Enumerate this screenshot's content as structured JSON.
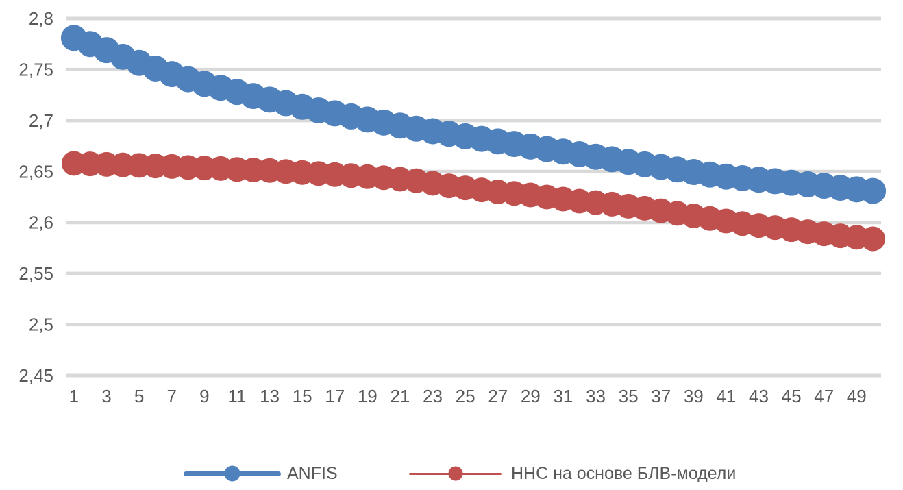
{
  "chart_data": {
    "type": "line",
    "title": "",
    "xlabel": "",
    "ylabel": "",
    "x": [
      1,
      2,
      3,
      4,
      5,
      6,
      7,
      8,
      9,
      10,
      11,
      12,
      13,
      14,
      15,
      16,
      17,
      18,
      19,
      20,
      21,
      22,
      23,
      24,
      25,
      26,
      27,
      28,
      29,
      30,
      31,
      32,
      33,
      34,
      35,
      36,
      37,
      38,
      39,
      40,
      41,
      42,
      43,
      44,
      45,
      46,
      47,
      48,
      49,
      50
    ],
    "series": [
      {
        "name": "ANFIS",
        "color": "#4F81BD",
        "marker_radius": 19,
        "line_width": 8,
        "values": [
          2.781,
          2.775,
          2.769,
          2.7625,
          2.7565,
          2.751,
          2.7455,
          2.7405,
          2.736,
          2.732,
          2.728,
          2.724,
          2.7205,
          2.717,
          2.7135,
          2.71,
          2.707,
          2.704,
          2.701,
          2.698,
          2.695,
          2.692,
          2.6895,
          2.687,
          2.6845,
          2.682,
          2.6795,
          2.677,
          2.6745,
          2.672,
          2.6695,
          2.667,
          2.6645,
          2.662,
          2.6595,
          2.657,
          2.6545,
          2.652,
          2.6495,
          2.647,
          2.645,
          2.6435,
          2.642,
          2.6405,
          2.639,
          2.6375,
          2.636,
          2.634,
          2.6325,
          2.631
        ]
      },
      {
        "name": "ННС на основе БЛВ-модели",
        "color": "#C0504D",
        "marker_radius": 18,
        "line_width": 3,
        "values": [
          2.658,
          2.6575,
          2.657,
          2.6565,
          2.656,
          2.6555,
          2.655,
          2.654,
          2.6535,
          2.653,
          2.652,
          2.6515,
          2.651,
          2.65,
          2.649,
          2.648,
          2.647,
          2.646,
          2.645,
          2.644,
          2.6425,
          2.641,
          2.6385,
          2.636,
          2.634,
          2.632,
          2.63,
          2.6285,
          2.627,
          2.625,
          2.623,
          2.621,
          2.6195,
          2.618,
          2.616,
          2.614,
          2.6115,
          2.609,
          2.6065,
          2.604,
          2.6015,
          2.599,
          2.597,
          2.595,
          2.593,
          2.591,
          2.589,
          2.587,
          2.5855,
          2.584
        ]
      }
    ],
    "ylim": [
      2.45,
      2.8
    ],
    "yticks": [
      2.45,
      2.5,
      2.55,
      2.6,
      2.65,
      2.7,
      2.75,
      2.8
    ],
    "ytick_labels": [
      "2,45",
      "2,5",
      "2,55",
      "2,6",
      "2,65",
      "2,7",
      "2,75",
      "2,8"
    ],
    "xticks": [
      1,
      3,
      5,
      7,
      9,
      11,
      13,
      15,
      17,
      19,
      21,
      23,
      25,
      27,
      29,
      31,
      33,
      35,
      37,
      39,
      41,
      43,
      45,
      47,
      49
    ],
    "grid": true,
    "grid_color": "#D9D9D9",
    "text_color": "#595959",
    "legend_position": "bottom"
  }
}
